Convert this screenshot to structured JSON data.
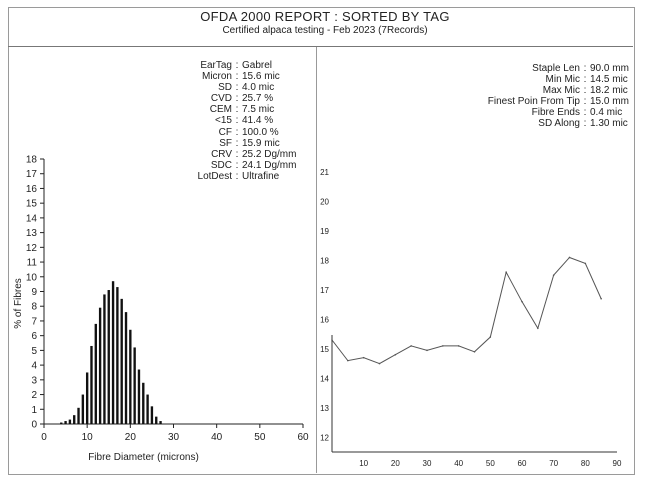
{
  "report": {
    "title": "OFDA 2000 REPORT : SORTED BY TAG",
    "subtitle": "Certified alpaca testing - Feb 2023 (7Records)"
  },
  "left_stats": [
    {
      "label": "EarTag",
      "value": "Gabrel"
    },
    {
      "label": "Micron",
      "value": "15.6 mic"
    },
    {
      "label": "SD",
      "value": "4.0 mic"
    },
    {
      "label": "CVD",
      "value": "25.7 %"
    },
    {
      "label": "CEM",
      "value": "7.5 mic"
    },
    {
      "label": "<15",
      "value": "41.4 %"
    },
    {
      "label": "CF",
      "value": "100.0 %"
    },
    {
      "label": "SF",
      "value": "15.9 mic"
    },
    {
      "label": "CRV",
      "value": "25.2 Dg/mm"
    },
    {
      "label": "SDC",
      "value": "24.1 Dg/mm"
    },
    {
      "label": "LotDest",
      "value": "Ultrafine"
    }
  ],
  "right_stats": [
    {
      "label": "Staple Len",
      "value": "90.0 mm"
    },
    {
      "label": "Min Mic",
      "value": "14.5 mic"
    },
    {
      "label": "Max Mic",
      "value": "18.2 mic"
    },
    {
      "label": "Finest Poin From Tip",
      "value": "15.0 mm"
    },
    {
      "label": "Fibre Ends",
      "value": "0.4 mic"
    },
    {
      "label": "SD Along",
      "value": "1.30 mic"
    }
  ],
  "chart_data": [
    {
      "type": "bar",
      "xlabel": "Fibre Diameter (microns)",
      "ylabel": "% of Fibres",
      "xlim": [
        0,
        60
      ],
      "ylim": [
        0,
        18
      ],
      "xticks": [
        0,
        10,
        20,
        30,
        40,
        50,
        60
      ],
      "yticks": [
        0,
        1,
        2,
        3,
        4,
        5,
        6,
        7,
        8,
        9,
        10,
        11,
        12,
        13,
        14,
        15,
        16,
        17,
        18
      ],
      "x": [
        4,
        5,
        6,
        7,
        8,
        9,
        10,
        11,
        12,
        13,
        14,
        15,
        16,
        17,
        18,
        19,
        20,
        21,
        22,
        23,
        24,
        25,
        26,
        27
      ],
      "values": [
        0.1,
        0.2,
        0.3,
        0.6,
        1.1,
        2.0,
        3.5,
        5.3,
        6.8,
        7.9,
        8.8,
        9.1,
        9.7,
        9.3,
        8.5,
        7.6,
        6.4,
        5.2,
        3.7,
        2.8,
        2.0,
        1.2,
        0.5,
        0.2
      ],
      "grid": false
    },
    {
      "type": "line",
      "xlabel": "",
      "ylabel": "",
      "xlim": [
        0,
        90
      ],
      "ylim": [
        11.5,
        21
      ],
      "xticks": [
        10,
        20,
        30,
        40,
        50,
        60,
        70,
        80,
        90
      ],
      "yticks": [
        12,
        13,
        14,
        15,
        16,
        17,
        18,
        19,
        20,
        21
      ],
      "x": [
        0,
        5,
        10,
        15,
        20,
        25,
        30,
        35,
        40,
        45,
        50,
        55,
        60,
        65,
        70,
        75,
        80,
        85
      ],
      "y": [
        15.3,
        14.6,
        14.7,
        14.5,
        14.8,
        15.1,
        14.95,
        15.1,
        15.1,
        14.9,
        15.4,
        17.6,
        16.6,
        15.7,
        17.5,
        18.1,
        17.9,
        16.7
      ],
      "grid": false
    }
  ]
}
